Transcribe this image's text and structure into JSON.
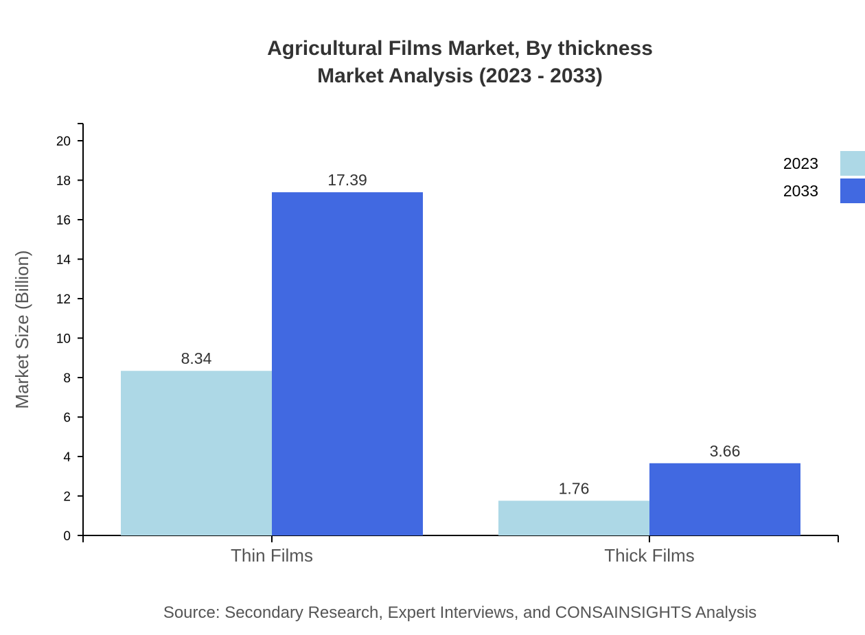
{
  "chart_data": {
    "type": "bar",
    "title": "Agricultural Films Market, By thickness",
    "subtitle": "Market Analysis (2023 - 2033)",
    "xlabel": "",
    "ylabel": "Market Size (Billion)",
    "categories": [
      "Thin Films",
      "Thick Films"
    ],
    "series": [
      {
        "name": "2023",
        "values": [
          8.34,
          1.76
        ],
        "color": "#ADD8E6"
      },
      {
        "name": "2033",
        "values": [
          17.39,
          3.66
        ],
        "color": "#4169E1"
      }
    ],
    "yticks": [
      0,
      2,
      4,
      6,
      8,
      10,
      12,
      14,
      16,
      18,
      20
    ],
    "ylim": [
      0,
      20.87
    ],
    "grid": false,
    "legend": "top-right",
    "source": "Source: Secondary Research, Expert Interviews, and CONSAINSIGHTS Analysis"
  }
}
